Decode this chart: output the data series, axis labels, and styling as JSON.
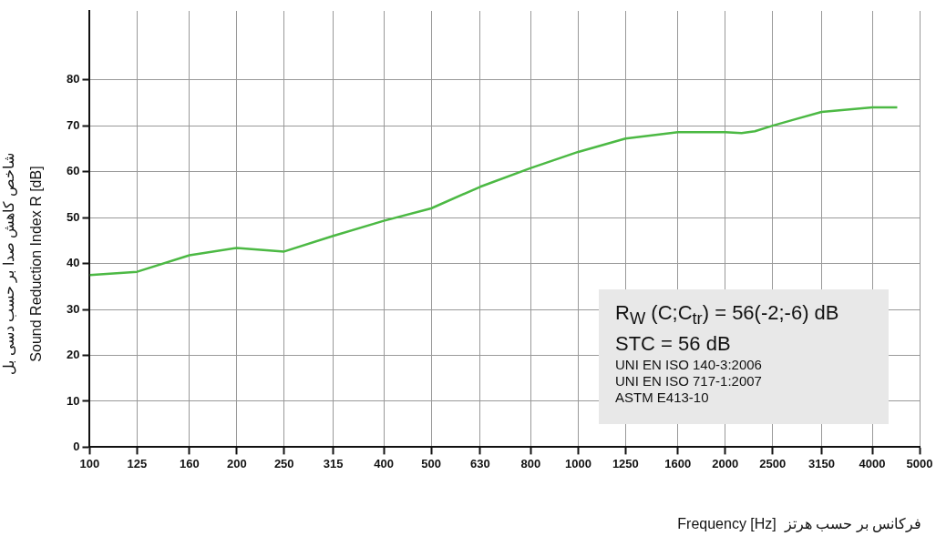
{
  "chart_data": {
    "type": "line",
    "xlabel": "Frequency [Hz]  فرکانس بر حسب هرتز",
    "ylabel": "شاخص کاهش صدا بر حسب دسی بل\nSound Reduction Index R [dB]",
    "log": "x",
    "x": [
      100,
      125,
      160,
      200,
      250,
      315,
      400,
      500,
      630,
      800,
      1000,
      1250,
      1600,
      2000,
      2160,
      2300,
      2500,
      2800,
      3150,
      4000,
      4500
    ],
    "series": [
      {
        "color": "#4cb944",
        "values": [
          37.5,
          38.2,
          41.8,
          43.4,
          42.6,
          46,
          49.3,
          52,
          56.7,
          60.8,
          64.3,
          67.2,
          68.6,
          68.6,
          68.4,
          68.8,
          70,
          71.5,
          73,
          74,
          74
        ]
      }
    ],
    "xlim": [
      100,
      5000
    ],
    "xticks": [
      100,
      125,
      160,
      200,
      250,
      315,
      400,
      500,
      630,
      800,
      1000,
      1250,
      1600,
      2000,
      2500,
      3150,
      4000,
      5000
    ],
    "ylim": [
      0,
      95
    ],
    "yticks": [
      0,
      10,
      20,
      30,
      40,
      50,
      60,
      70,
      80
    ],
    "grid": true,
    "legend": false,
    "marker": "none",
    "line_style": "solid",
    "annotations": [
      "R$_{W}$ (C;C$_{tr}$) = 56(-2;-6) dB",
      "STC = 56 dB",
      "UNI EN ISO 140-3:2006",
      "UNI EN ISO 717-1:2007",
      "ASTM E413-10"
    ]
  }
}
